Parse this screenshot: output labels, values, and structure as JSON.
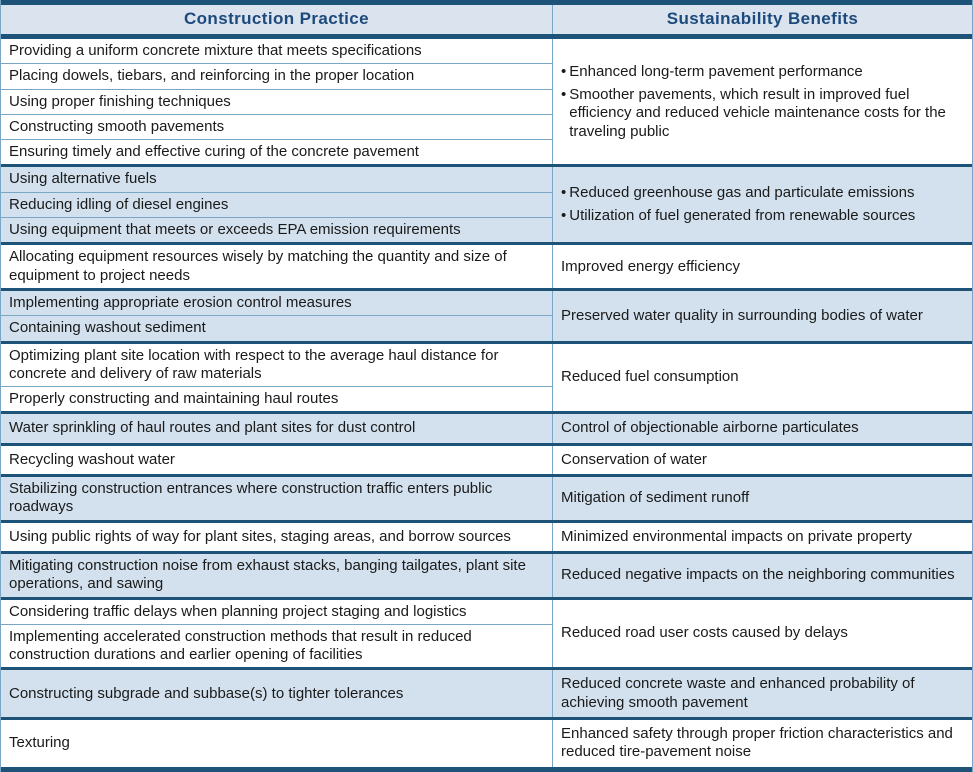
{
  "table": {
    "headers": [
      "Construction Practice",
      "Sustainability Benefits"
    ],
    "colors": {
      "dark_bar": "#1d5379",
      "header_bg": "#dae3ee",
      "band_bg": "#d3e1ee",
      "thin_separator": "#7aa6c6",
      "header_text": "#1c4a7c",
      "body_text": "#1a1a1a"
    },
    "groups": [
      {
        "shaded": false,
        "bulleted": true,
        "practices": [
          "Providing a uniform concrete mixture that meets specifications",
          "Placing dowels, tiebars, and reinforcing in the proper location",
          "Using proper finishing techniques",
          "Constructing smooth pavements",
          "Ensuring timely and effective curing of the concrete pavement"
        ],
        "benefits": [
          "Enhanced long-term pavement performance",
          "Smoother pavements, which result in improved fuel efficiency and reduced vehicle maintenance costs for the traveling public"
        ]
      },
      {
        "shaded": true,
        "bulleted": true,
        "practices": [
          "Using alternative fuels",
          "Reducing idling of diesel engines",
          "Using equipment that meets or exceeds EPA emission requirements"
        ],
        "benefits": [
          "Reduced greenhouse gas and particulate emissions",
          "Utilization of fuel generated from renewable sources"
        ]
      },
      {
        "shaded": false,
        "bulleted": false,
        "practices": [
          "Allocating equipment resources wisely by matching the quantity and size of equipment to project needs"
        ],
        "benefits": [
          "Improved energy efficiency"
        ]
      },
      {
        "shaded": true,
        "bulleted": false,
        "practices": [
          "Implementing appropriate erosion control measures",
          "Containing washout sediment"
        ],
        "benefits": [
          "Preserved water quality in surrounding bodies of water"
        ]
      },
      {
        "shaded": false,
        "bulleted": false,
        "practices": [
          "Optimizing plant site location with respect to the average haul distance for concrete and delivery of raw materials",
          "Properly constructing and maintaining haul routes"
        ],
        "benefits": [
          "Reduced fuel consumption"
        ]
      },
      {
        "shaded": true,
        "bulleted": false,
        "practices": [
          "Water sprinkling of haul routes and plant sites for dust control"
        ],
        "benefits": [
          "Control of objectionable airborne particulates"
        ]
      },
      {
        "shaded": false,
        "bulleted": false,
        "practices": [
          "Recycling washout water"
        ],
        "benefits": [
          "Conservation of water"
        ]
      },
      {
        "shaded": true,
        "bulleted": false,
        "practices": [
          "Stabilizing construction entrances where construction traffic enters public roadways"
        ],
        "benefits": [
          "Mitigation of sediment runoff"
        ]
      },
      {
        "shaded": false,
        "bulleted": false,
        "practices": [
          "Using public rights of way for plant sites, staging areas, and borrow sources"
        ],
        "benefits": [
          "Minimized environmental impacts on private property"
        ]
      },
      {
        "shaded": true,
        "bulleted": false,
        "practices": [
          "Mitigating construction noise from exhaust stacks, banging tailgates, plant site operations, and sawing"
        ],
        "benefits": [
          "Reduced negative impacts on the neighboring communities"
        ]
      },
      {
        "shaded": false,
        "bulleted": false,
        "practices": [
          "Considering traffic delays when planning project staging and logistics",
          "Implementing accelerated construction methods that result in reduced construction durations and earlier opening of facilities"
        ],
        "benefits": [
          "Reduced road user costs caused by delays"
        ]
      },
      {
        "shaded": true,
        "bulleted": false,
        "practices": [
          "Constructing subgrade and subbase(s) to tighter tolerances"
        ],
        "benefits": [
          "Reduced concrete waste and enhanced probability of achieving smooth pavement"
        ]
      },
      {
        "shaded": false,
        "bulleted": false,
        "practices": [
          "Texturing"
        ],
        "benefits": [
          "Enhanced safety through proper friction characteristics and reduced tire-pavement noise"
        ]
      }
    ]
  }
}
